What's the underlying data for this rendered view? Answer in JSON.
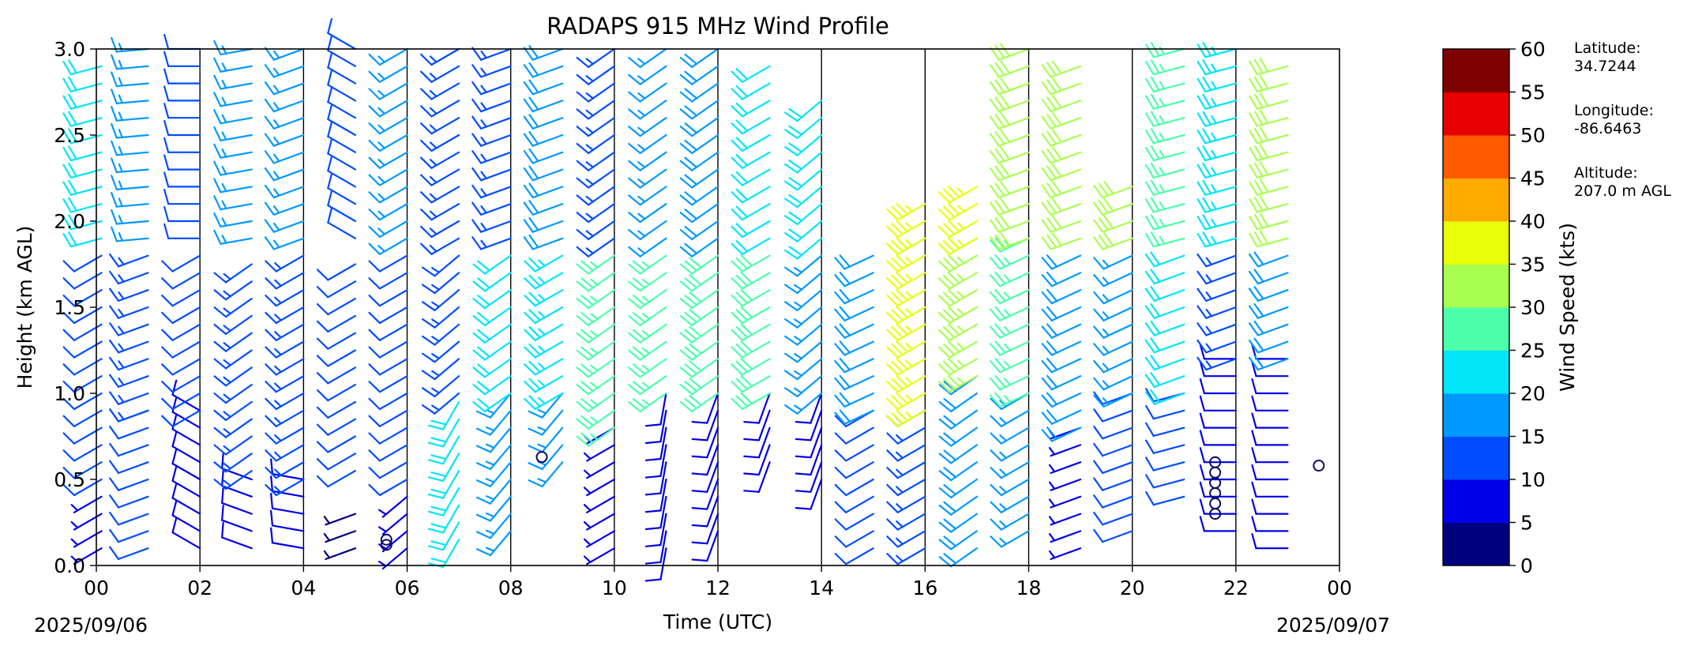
{
  "chart_data": {
    "type": "wind-barbs",
    "title": "RADAPS 915 MHz Wind Profile",
    "xlabel": "Time (UTC)",
    "ylabel": "Height (km AGL)",
    "xlim": [
      0,
      24
    ],
    "ylim": [
      0,
      3.0
    ],
    "x_ticks": [
      "00",
      "02",
      "04",
      "06",
      "08",
      "10",
      "12",
      "14",
      "16",
      "18",
      "20",
      "22",
      "00"
    ],
    "y_ticks": [
      "0.0",
      "0.5",
      "1.0",
      "1.5",
      "2.0",
      "2.5",
      "3.0"
    ],
    "date_left": "2025/09/06",
    "date_right": "2025/09/07",
    "colorbar": {
      "label": "Wind Speed (kts)",
      "ticks": [
        "0",
        "5",
        "10",
        "15",
        "20",
        "25",
        "30",
        "35",
        "40",
        "45",
        "50",
        "55",
        "60"
      ],
      "colors": [
        "#00007f",
        "#0000e6",
        "#004cff",
        "#0099ff",
        "#00e5f8",
        "#4cffab",
        "#a8ff4f",
        "#e8ff0c",
        "#ffab00",
        "#ff5a00",
        "#e80000",
        "#7f0000"
      ]
    },
    "station": {
      "latitude_label": "Latitude:",
      "latitude": "34.7244",
      "longitude_label": "Longitude:",
      "longitude": "-86.6463",
      "altitude_label": "Altitude:",
      "altitude": "207.0 m AGL"
    },
    "profiles": [
      {
        "time": 0.1,
        "top": 2.95,
        "segments": [
          [
            0,
            0.45,
            7,
            240
          ],
          [
            0.5,
            1.8,
            12,
            240
          ],
          [
            1.9,
            3.0,
            20,
            255
          ]
        ]
      },
      {
        "time": 1.0,
        "top": 3.0,
        "segments": [
          [
            0,
            0.9,
            10,
            250
          ],
          [
            0.9,
            1.85,
            13,
            250
          ],
          [
            1.9,
            3.0,
            17,
            265
          ]
        ]
      },
      {
        "time": 2.0,
        "top": 3.0,
        "segments": [
          [
            0,
            0.9,
            8,
            300
          ],
          [
            0.9,
            1.85,
            11,
            240
          ],
          [
            1.9,
            3.0,
            12,
            270
          ]
        ]
      },
      {
        "time": 3.0,
        "top": 3.0,
        "segments": [
          [
            0,
            0.55,
            9,
            290
          ],
          [
            0.55,
            1.8,
            13,
            235
          ],
          [
            1.9,
            3.0,
            15,
            260
          ]
        ]
      },
      {
        "time": 4.0,
        "top": 3.0,
        "segments": [
          [
            0,
            0.5,
            8,
            280
          ],
          [
            0.5,
            1.8,
            14,
            240
          ],
          [
            1.9,
            3.0,
            15,
            250
          ]
        ]
      },
      {
        "time": 5.0,
        "top": 3.0,
        "segments": [
          [
            0,
            0.35,
            4,
            250
          ],
          [
            0.55,
            1.8,
            12,
            240
          ],
          [
            1.9,
            3.0,
            12,
            300
          ]
        ]
      },
      {
        "time": 6.0,
        "top": 3.0,
        "segments": [
          [
            0,
            0.45,
            5,
            230
          ],
          [
            0.5,
            1.8,
            11,
            240
          ],
          [
            1.9,
            3.0,
            16,
            240
          ]
        ]
      },
      {
        "time": 7.0,
        "top": 3.0,
        "segments": [
          [
            0.15,
            1.0,
            20,
            210
          ],
          [
            1.0,
            1.8,
            14,
            230
          ],
          [
            1.9,
            3.0,
            14,
            240
          ]
        ]
      },
      {
        "time": 8.0,
        "top": 3.0,
        "segments": [
          [
            0.2,
            1.0,
            17,
            220
          ],
          [
            1.0,
            1.8,
            20,
            235
          ],
          [
            1.9,
            3.0,
            14,
            250
          ]
        ]
      },
      {
        "time": 9.0,
        "top": 3.0,
        "segments": [
          [
            0.6,
            1.0,
            17,
            220
          ],
          [
            1.0,
            1.85,
            24,
            240
          ],
          [
            1.9,
            3.0,
            18,
            250
          ]
        ]
      },
      {
        "time": 10.0,
        "top": 3.0,
        "segments": [
          [
            0,
            0.8,
            7,
            240
          ],
          [
            0.8,
            1.8,
            27,
            235
          ],
          [
            1.9,
            3.0,
            14,
            235
          ]
        ]
      },
      {
        "time": 11.0,
        "top": 3.0,
        "segments": [
          [
            0.1,
            1.0,
            8,
            190
          ],
          [
            1.0,
            1.8,
            27,
            235
          ],
          [
            1.9,
            3.0,
            17,
            235
          ]
        ]
      },
      {
        "time": 12.0,
        "top": 3.0,
        "segments": [
          [
            0.2,
            1.0,
            8,
            200
          ],
          [
            1.0,
            1.8,
            28,
            235
          ],
          [
            1.9,
            3.0,
            18,
            235
          ]
        ]
      },
      {
        "time": 13.0,
        "top": 2.95,
        "segments": [
          [
            0.6,
            1.0,
            8,
            200
          ],
          [
            1.0,
            1.8,
            29,
            240
          ],
          [
            1.9,
            2.95,
            22,
            240
          ]
        ]
      },
      {
        "time": 14.0,
        "top": 2.75,
        "segments": [
          [
            0.5,
            1.0,
            9,
            200
          ],
          [
            1.0,
            1.8,
            16,
            230
          ],
          [
            1.9,
            2.75,
            20,
            230
          ]
        ]
      },
      {
        "time": 15.0,
        "top": 1.8,
        "segments": [
          [
            0.1,
            0.9,
            11,
            240
          ],
          [
            0.9,
            1.8,
            18,
            245
          ]
        ]
      },
      {
        "time": 16.0,
        "top": 2.1,
        "segments": [
          [
            0.1,
            0.9,
            13,
            240
          ],
          [
            0.9,
            1.9,
            37,
            240
          ],
          [
            1.9,
            2.1,
            36,
            240
          ]
        ]
      },
      {
        "time": 17.0,
        "top": 2.25,
        "segments": [
          [
            0.1,
            1.1,
            18,
            235
          ],
          [
            1.1,
            1.9,
            33,
            240
          ],
          [
            1.9,
            2.25,
            35,
            240
          ]
        ]
      },
      {
        "time": 18.0,
        "top": 3.0,
        "segments": [
          [
            0.2,
            1.0,
            15,
            240
          ],
          [
            1.0,
            1.9,
            25,
            245
          ],
          [
            1.9,
            3.0,
            30,
            250
          ]
        ]
      },
      {
        "time": 19.0,
        "top": 2.95,
        "segments": [
          [
            0.1,
            0.8,
            7,
            250
          ],
          [
            0.8,
            1.85,
            18,
            245
          ],
          [
            1.9,
            2.95,
            32,
            250
          ]
        ]
      },
      {
        "time": 20.0,
        "top": 2.25,
        "segments": [
          [
            0.2,
            1.0,
            12,
            250
          ],
          [
            1.0,
            1.85,
            17,
            245
          ],
          [
            1.9,
            2.25,
            30,
            250
          ]
        ]
      },
      {
        "time": 21.0,
        "top": 3.0,
        "segments": [
          [
            0.4,
            1.0,
            10,
            255
          ],
          [
            1.0,
            1.85,
            20,
            250
          ],
          [
            1.9,
            3.0,
            26,
            255
          ]
        ]
      },
      {
        "time": 22.0,
        "top": 3.0,
        "segments": [
          [
            0.2,
            1.2,
            8,
            270
          ],
          [
            1.2,
            1.85,
            14,
            250
          ],
          [
            1.9,
            3.0,
            24,
            255
          ]
        ]
      },
      {
        "time": 23.0,
        "top": 2.95,
        "segments": [
          [
            0.1,
            1.2,
            9,
            270
          ],
          [
            1.2,
            1.85,
            18,
            250
          ],
          [
            1.9,
            2.95,
            30,
            255
          ]
        ]
      }
    ],
    "calm_points": [
      [
        5.6,
        0.15
      ],
      [
        5.6,
        0.12
      ],
      [
        8.6,
        0.63
      ],
      [
        21.6,
        0.6
      ],
      [
        21.6,
        0.54
      ],
      [
        21.6,
        0.48
      ],
      [
        21.6,
        0.42
      ],
      [
        21.6,
        0.36
      ],
      [
        21.6,
        0.3
      ],
      [
        23.6,
        0.58
      ]
    ]
  }
}
